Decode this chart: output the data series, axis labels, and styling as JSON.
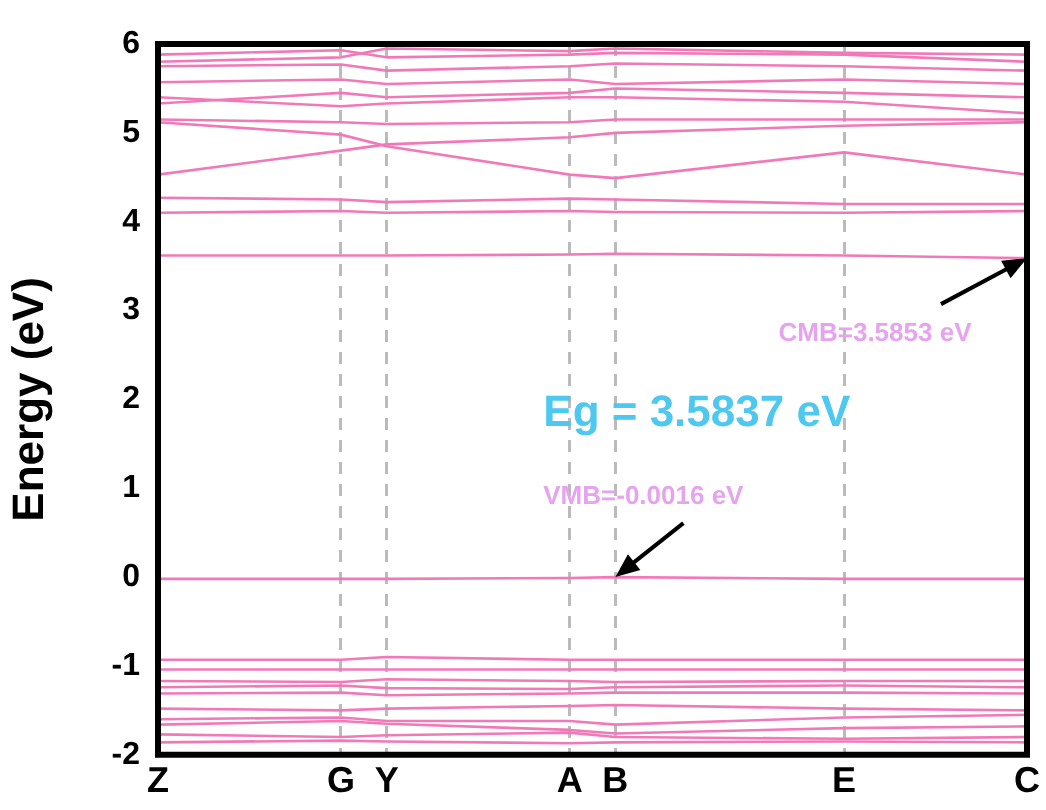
{
  "chart_data": {
    "type": "line",
    "ylabel": "Energy (eV)",
    "categories": [
      "Z",
      null,
      null,
      null,
      "G",
      "Y",
      null,
      null,
      null,
      "A",
      "B",
      null,
      null,
      null,
      null,
      "E",
      null,
      null,
      null,
      "C"
    ],
    "ylim": [
      -2,
      6
    ],
    "yticks": [
      -2,
      -1,
      0,
      1,
      2,
      3,
      4,
      5,
      6
    ],
    "grid": "x",
    "legend": false,
    "marker": "none",
    "annotations": [
      {
        "text": "CMB=3.5853 eV",
        "x": "C",
        "y": 3.59
      },
      {
        "text": "VMB=-0.0016 eV",
        "x": "B",
        "y": 0
      },
      "Eg = 3.5837 eV"
    ],
    "series": [
      {
        "color": "#f279b8",
        "values": [
          -1.86,
          null,
          null,
          null,
          -1.84,
          -1.85,
          null,
          null,
          null,
          -1.87,
          -1.86,
          null,
          null,
          null,
          null,
          -1.85,
          null,
          null,
          null,
          -1.86
        ]
      },
      {
        "color": "#f279b8",
        "values": [
          -1.77,
          null,
          null,
          null,
          -1.8,
          -1.78,
          null,
          null,
          null,
          -1.75,
          -1.8,
          null,
          null,
          null,
          null,
          -1.82,
          null,
          null,
          null,
          -1.8
        ]
      },
      {
        "color": "#f279b8",
        "values": [
          -1.66,
          null,
          null,
          null,
          -1.62,
          -1.65,
          null,
          null,
          null,
          -1.72,
          -1.76,
          null,
          null,
          null,
          null,
          -1.7,
          null,
          null,
          null,
          -1.68
        ]
      },
      {
        "color": "#f279b8",
        "values": [
          -1.6,
          null,
          null,
          null,
          -1.58,
          -1.62,
          null,
          null,
          null,
          -1.62,
          -1.66,
          null,
          null,
          null,
          null,
          -1.58,
          null,
          null,
          null,
          -1.55
        ]
      },
      {
        "color": "#f279b8",
        "values": [
          -1.48,
          null,
          null,
          null,
          -1.5,
          -1.48,
          null,
          null,
          null,
          -1.45,
          -1.44,
          null,
          null,
          null,
          null,
          -1.48,
          null,
          null,
          null,
          -1.5
        ]
      },
      {
        "color": "#f279b8",
        "values": [
          -1.31,
          null,
          null,
          null,
          -1.3,
          -1.33,
          null,
          null,
          null,
          -1.31,
          -1.3,
          null,
          null,
          null,
          null,
          -1.3,
          null,
          null,
          null,
          -1.31
        ]
      },
      {
        "color": "#f279b8",
        "values": [
          -1.24,
          null,
          null,
          null,
          -1.22,
          -1.25,
          null,
          null,
          null,
          -1.26,
          -1.24,
          null,
          null,
          null,
          null,
          -1.22,
          null,
          null,
          null,
          -1.24
        ]
      },
      {
        "color": "#f279b8",
        "values": [
          -1.17,
          null,
          null,
          null,
          -1.18,
          -1.15,
          null,
          null,
          null,
          -1.17,
          -1.18,
          null,
          null,
          null,
          null,
          -1.17,
          null,
          null,
          null,
          -1.17
        ]
      },
      {
        "color": "#f279b8",
        "values": [
          -1.04,
          null,
          null,
          null,
          -1.04,
          -1.04,
          null,
          null,
          null,
          -1.04,
          -1.04,
          null,
          null,
          null,
          null,
          -1.04,
          null,
          null,
          null,
          -1.04
        ]
      },
      {
        "color": "#f279b8",
        "values": [
          -0.93,
          null,
          null,
          null,
          -0.93,
          -0.9,
          null,
          null,
          null,
          -0.93,
          -0.93,
          null,
          null,
          null,
          null,
          -0.93,
          null,
          null,
          null,
          -0.93
        ]
      },
      {
        "color": "#f279b8",
        "values": [
          -0.02,
          null,
          null,
          null,
          -0.02,
          -0.02,
          null,
          null,
          null,
          -0.01,
          0,
          null,
          null,
          null,
          null,
          -0.02,
          null,
          null,
          null,
          -0.02
        ]
      },
      {
        "color": "#f279b8",
        "values": [
          3.62,
          null,
          null,
          null,
          3.62,
          3.62,
          null,
          null,
          null,
          3.63,
          3.64,
          null,
          null,
          null,
          null,
          3.62,
          null,
          null,
          null,
          3.59
        ]
      },
      {
        "color": "#f279b8",
        "values": [
          4.1,
          null,
          null,
          null,
          4.12,
          4.1,
          null,
          null,
          null,
          4.12,
          4.11,
          null,
          null,
          null,
          null,
          4.1,
          null,
          null,
          null,
          4.12
        ]
      },
      {
        "color": "#f279b8",
        "values": [
          4.27,
          null,
          null,
          null,
          4.25,
          4.22,
          null,
          null,
          null,
          4.26,
          4.25,
          null,
          null,
          null,
          null,
          4.2,
          null,
          null,
          null,
          4.2
        ]
      },
      {
        "color": "#f279b8",
        "values": [
          4.53,
          null,
          null,
          null,
          4.8,
          4.87,
          null,
          null,
          null,
          4.95,
          5.0,
          null,
          null,
          null,
          null,
          5.08,
          null,
          null,
          null,
          5.12
        ]
      },
      {
        "color": "#f279b8",
        "values": [
          5.12,
          null,
          null,
          null,
          4.98,
          4.85,
          null,
          null,
          null,
          4.53,
          4.49,
          null,
          null,
          null,
          null,
          4.78,
          null,
          null,
          null,
          4.53
        ]
      },
      {
        "color": "#f279b8",
        "values": [
          5.15,
          null,
          null,
          null,
          5.12,
          5.1,
          null,
          null,
          null,
          5.12,
          5.15,
          null,
          null,
          null,
          null,
          5.15,
          null,
          null,
          null,
          5.15
        ]
      },
      {
        "color": "#f279b8",
        "values": [
          5.4,
          null,
          null,
          null,
          5.3,
          5.33,
          null,
          null,
          null,
          5.4,
          5.4,
          null,
          null,
          null,
          null,
          5.35,
          null,
          null,
          null,
          5.22
        ]
      },
      {
        "color": "#f279b8",
        "values": [
          5.33,
          null,
          null,
          null,
          5.45,
          5.4,
          null,
          null,
          null,
          5.45,
          5.5,
          null,
          null,
          null,
          null,
          5.45,
          null,
          null,
          null,
          5.4
        ]
      },
      {
        "color": "#f279b8",
        "values": [
          5.57,
          null,
          null,
          null,
          5.6,
          5.55,
          null,
          null,
          null,
          5.6,
          5.55,
          null,
          null,
          null,
          null,
          5.6,
          null,
          null,
          null,
          5.55
        ]
      },
      {
        "color": "#f279b8",
        "values": [
          5.75,
          null,
          null,
          null,
          5.77,
          5.7,
          null,
          null,
          null,
          5.75,
          5.78,
          null,
          null,
          null,
          null,
          5.75,
          null,
          null,
          null,
          5.7
        ]
      },
      {
        "color": "#f279b8",
        "values": [
          5.88,
          null,
          null,
          null,
          5.93,
          5.85,
          null,
          null,
          null,
          5.88,
          5.9,
          null,
          null,
          null,
          null,
          5.88,
          null,
          null,
          null,
          5.8
        ]
      },
      {
        "color": "#f279b8",
        "values": [
          5.8,
          null,
          null,
          null,
          5.85,
          5.95,
          null,
          null,
          null,
          5.92,
          5.95,
          null,
          null,
          null,
          null,
          5.9,
          null,
          null,
          null,
          5.88
        ]
      }
    ]
  }
}
